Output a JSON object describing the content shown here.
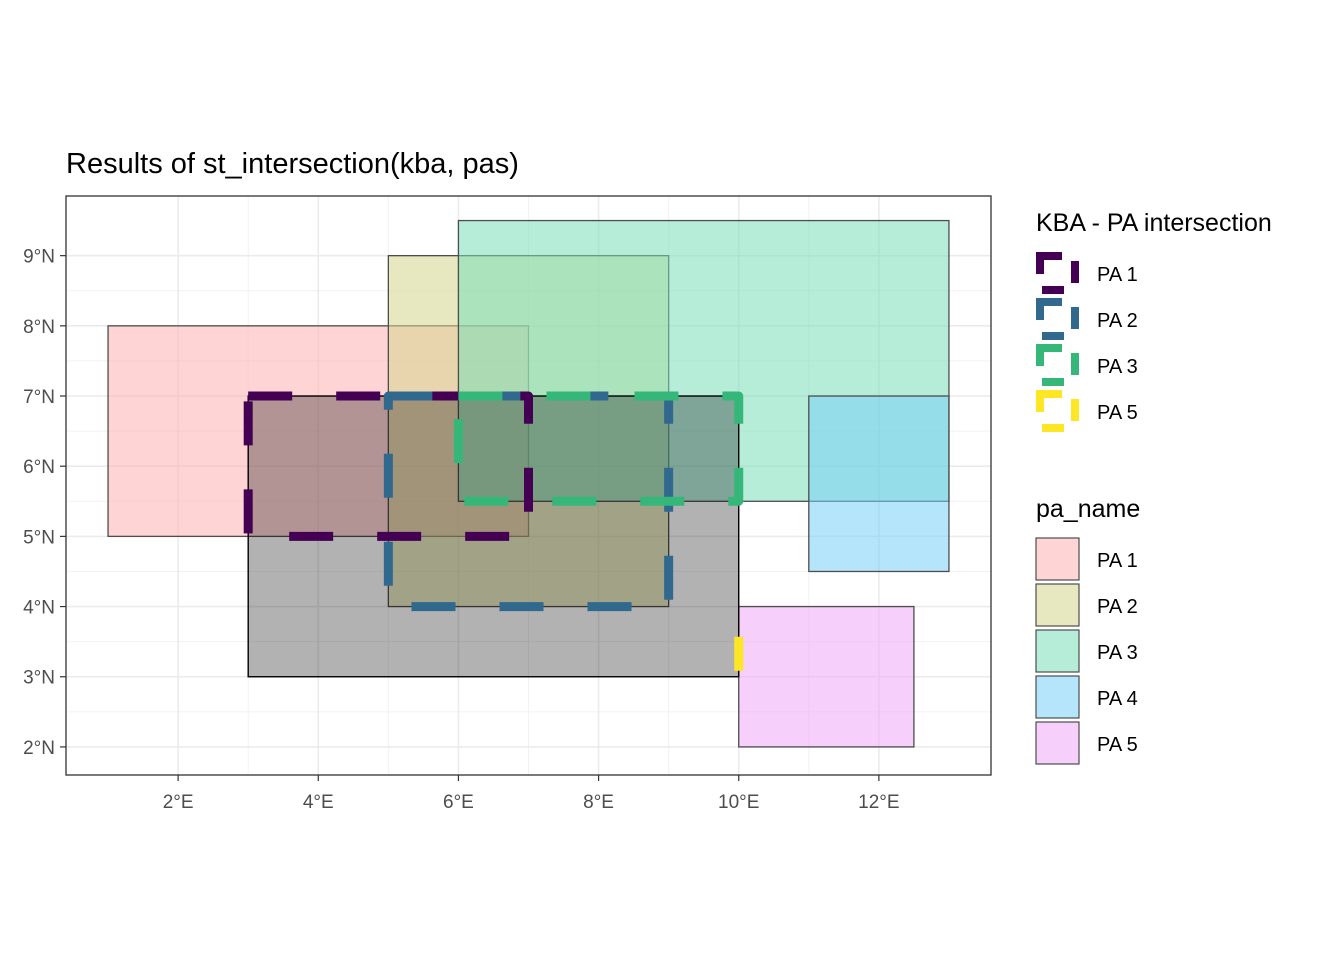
{
  "chart_data": {
    "type": "map",
    "title": "Results of st_intersection(kba, pas)",
    "xlim": [
      0.4,
      13.6
    ],
    "ylim": [
      1.6,
      9.85
    ],
    "x_ticks": [
      {
        "value": 2,
        "label": "2°E"
      },
      {
        "value": 4,
        "label": "4°E"
      },
      {
        "value": 6,
        "label": "6°E"
      },
      {
        "value": 8,
        "label": "8°E"
      },
      {
        "value": 10,
        "label": "10°E"
      },
      {
        "value": 12,
        "label": "12°E"
      }
    ],
    "y_ticks": [
      {
        "value": 2,
        "label": "2°N"
      },
      {
        "value": 3,
        "label": "3°N"
      },
      {
        "value": 4,
        "label": "4°N"
      },
      {
        "value": 5,
        "label": "5°N"
      },
      {
        "value": 6,
        "label": "6°N"
      },
      {
        "value": 7,
        "label": "7°N"
      },
      {
        "value": 8,
        "label": "8°N"
      },
      {
        "value": 9,
        "label": "9°N"
      }
    ],
    "grid": true,
    "kba": {
      "xmin": 3,
      "xmax": 10,
      "ymin": 3,
      "ymax": 7,
      "color": "#000000",
      "opacity": 0.3
    },
    "protected_areas": [
      {
        "name": "PA 1",
        "xmin": 1,
        "xmax": 7,
        "ymin": 5,
        "ymax": 8,
        "color": "#FFB0B0"
      },
      {
        "name": "PA 2",
        "xmin": 5,
        "xmax": 9,
        "ymin": 4,
        "ymax": 9,
        "color": "#D5D58C"
      },
      {
        "name": "PA 3",
        "xmin": 6,
        "xmax": 13,
        "ymin": 5.5,
        "ymax": 9.5,
        "color": "#79DEB8"
      },
      {
        "name": "PA 4",
        "xmin": 11,
        "xmax": 13,
        "ymin": 4.5,
        "ymax": 7,
        "color": "#78D0F8"
      },
      {
        "name": "PA 5",
        "xmin": 10,
        "xmax": 12.5,
        "ymin": 2,
        "ymax": 4,
        "color": "#F0A8F8"
      }
    ],
    "fill_opacity": 0.55,
    "intersections": [
      {
        "name": "PA 1",
        "xmin": 3,
        "xmax": 7,
        "ymin": 5,
        "ymax": 7,
        "color": "#440154"
      },
      {
        "name": "PA 2",
        "xmin": 5,
        "xmax": 9,
        "ymin": 4,
        "ymax": 7,
        "color": "#31688E"
      },
      {
        "name": "PA 3",
        "xmin": 6,
        "xmax": 10,
        "ymin": 5.5,
        "ymax": 7,
        "color": "#35B779"
      },
      {
        "name": "PA 5",
        "xmin": 10,
        "xmax": 10,
        "ymin": 3,
        "ymax": 4,
        "color": "#FDE725"
      }
    ],
    "legends": [
      {
        "title": "KBA - PA intersection",
        "kind": "outline",
        "entries": [
          "PA 1",
          "PA 2",
          "PA 3",
          "PA 5"
        ],
        "colors": [
          "#440154",
          "#31688E",
          "#35B779",
          "#FDE725"
        ]
      },
      {
        "title": "pa_name",
        "kind": "fill",
        "entries": [
          "PA 1",
          "PA 2",
          "PA 3",
          "PA 4",
          "PA 5"
        ],
        "colors": [
          "#FFB0B0",
          "#D5D58C",
          "#79DEB8",
          "#78D0F8",
          "#F0A8F8"
        ]
      }
    ],
    "legend_position": "right"
  }
}
